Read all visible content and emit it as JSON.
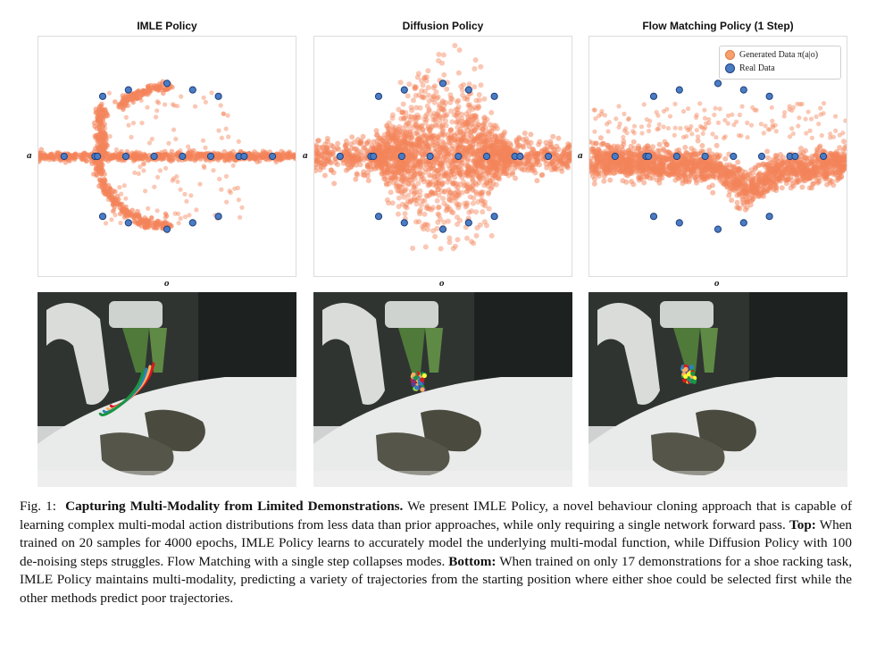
{
  "panels": [
    {
      "title": "IMLE Policy",
      "ylabel": "a",
      "xlabel": "o"
    },
    {
      "title": "Diffusion Policy",
      "ylabel": "a",
      "xlabel": "o"
    },
    {
      "title": "Flow Matching Policy (1 Step)",
      "ylabel": "a",
      "xlabel": "o"
    }
  ],
  "legend": {
    "generated": "Generated Data π(a|o)",
    "real": "Real Data"
  },
  "colors": {
    "generated": "#f4845a",
    "real": "#4a7cc4",
    "real_edge": "#1f3f7a"
  },
  "chart_data": [
    {
      "type": "scatter",
      "title": "IMLE Policy",
      "xlabel": "o",
      "ylabel": "a",
      "series": [
        {
          "name": "Real Data",
          "points": [
            [
              0.1,
              0.0
            ],
            [
              0.22,
              0.0
            ],
            [
              0.23,
              0.0
            ],
            [
              0.34,
              0.0
            ],
            [
              0.45,
              0.0
            ],
            [
              0.56,
              0.0
            ],
            [
              0.67,
              0.0
            ],
            [
              0.78,
              0.0
            ],
            [
              0.8,
              0.0
            ],
            [
              0.91,
              0.0
            ],
            [
              0.25,
              0.56
            ],
            [
              0.35,
              0.62
            ],
            [
              0.5,
              0.68
            ],
            [
              0.6,
              0.62
            ],
            [
              0.7,
              0.56
            ],
            [
              0.25,
              -0.56
            ],
            [
              0.35,
              -0.62
            ],
            [
              0.5,
              -0.68
            ],
            [
              0.6,
              -0.62
            ],
            [
              0.7,
              -0.56
            ]
          ]
        }
      ]
    },
    {
      "type": "scatter",
      "title": "Diffusion Policy",
      "xlabel": "o",
      "ylabel": "a",
      "series": [
        {
          "name": "Real Data",
          "points": [
            [
              0.1,
              0.0
            ],
            [
              0.22,
              0.0
            ],
            [
              0.23,
              0.0
            ],
            [
              0.34,
              0.0
            ],
            [
              0.45,
              0.0
            ],
            [
              0.56,
              0.0
            ],
            [
              0.67,
              0.0
            ],
            [
              0.78,
              0.0
            ],
            [
              0.8,
              0.0
            ],
            [
              0.91,
              0.0
            ],
            [
              0.25,
              0.56
            ],
            [
              0.35,
              0.62
            ],
            [
              0.5,
              0.68
            ],
            [
              0.6,
              0.62
            ],
            [
              0.7,
              0.56
            ],
            [
              0.25,
              -0.56
            ],
            [
              0.35,
              -0.62
            ],
            [
              0.5,
              -0.68
            ],
            [
              0.6,
              -0.62
            ],
            [
              0.7,
              -0.56
            ]
          ]
        }
      ]
    },
    {
      "type": "scatter",
      "title": "Flow Matching Policy (1 Step)",
      "xlabel": "o",
      "ylabel": "a",
      "series": [
        {
          "name": "Real Data",
          "points": [
            [
              0.1,
              0.0
            ],
            [
              0.22,
              0.0
            ],
            [
              0.23,
              0.0
            ],
            [
              0.34,
              0.0
            ],
            [
              0.45,
              0.0
            ],
            [
              0.56,
              0.0
            ],
            [
              0.67,
              0.0
            ],
            [
              0.78,
              0.0
            ],
            [
              0.8,
              0.0
            ],
            [
              0.91,
              0.0
            ],
            [
              0.25,
              0.56
            ],
            [
              0.35,
              0.62
            ],
            [
              0.5,
              0.68
            ],
            [
              0.6,
              0.62
            ],
            [
              0.7,
              0.56
            ],
            [
              0.25,
              -0.56
            ],
            [
              0.35,
              -0.62
            ],
            [
              0.5,
              -0.68
            ],
            [
              0.6,
              -0.62
            ],
            [
              0.7,
              -0.56
            ]
          ]
        }
      ]
    }
  ],
  "caption": {
    "label": "Fig. 1:",
    "title": "Capturing Multi-Modality from Limited Demonstrations.",
    "text1": "We present IMLE Policy, a novel behaviour cloning approach that is capable of learning complex multi-modal action distributions from less data than prior approaches, while only requiring a single network forward pass.",
    "top_label": "Top:",
    "text2": "When trained on 20 samples for 4000 epochs, IMLE Policy learns to accurately model the underlying multi-modal function, while Diffusion Policy with 100 de-noising steps struggles. Flow Matching with a single step collapses modes.",
    "bottom_label": "Bottom:",
    "text3": "When trained on only 17 demonstrations for a shoe racking task, IMLE Policy maintains multi-modality, predicting a variety of trajectories from the starting position where either shoe could be selected first while the other methods predict poor trajectories."
  }
}
